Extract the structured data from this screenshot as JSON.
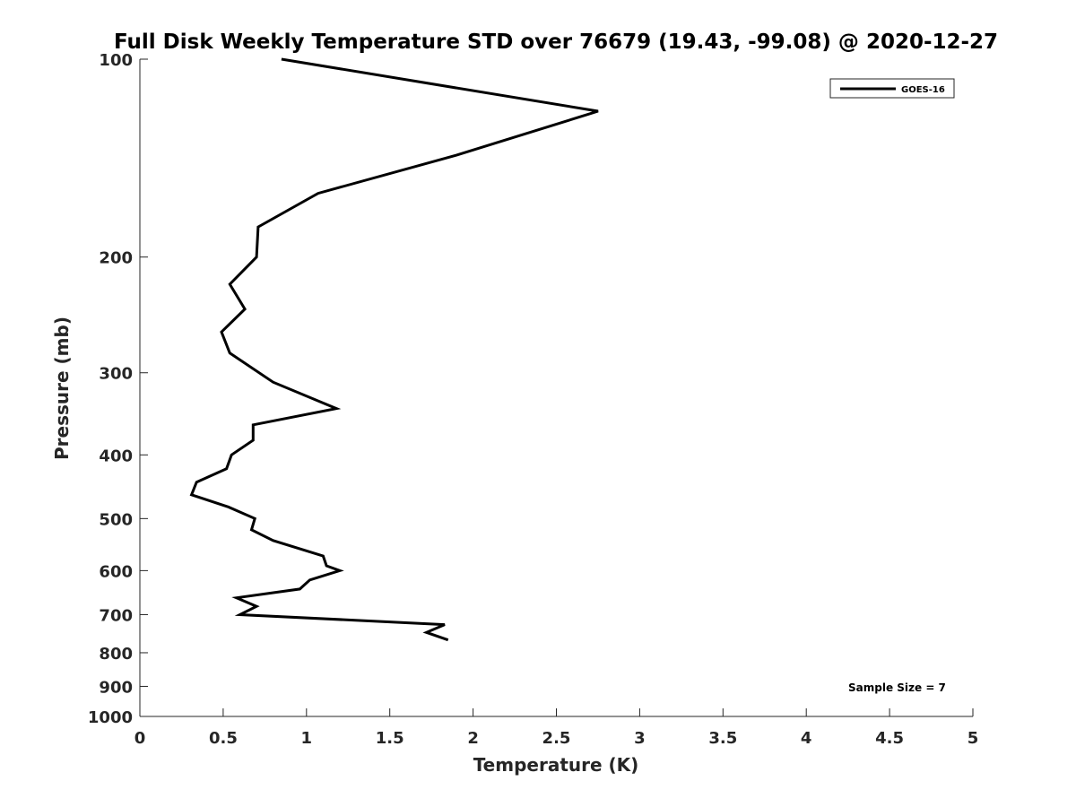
{
  "chart_data": {
    "type": "line",
    "title": "Full Disk Weekly Temperature STD over 76679 (19.43, -99.08) @ 2020-12-27",
    "xlabel": "Temperature (K)",
    "ylabel": "Pressure (mb)",
    "xlim": [
      0,
      5
    ],
    "ylim": [
      100,
      1000
    ],
    "y_scale": "log",
    "y_reversed": true,
    "xticks": [
      0,
      0.5,
      1,
      1.5,
      2,
      2.5,
      3,
      3.5,
      4,
      4.5,
      5
    ],
    "xtick_labels": [
      "0",
      "0.5",
      "1",
      "1.5",
      "2",
      "2.5",
      "3",
      "3.5",
      "4",
      "4.5",
      "5"
    ],
    "yticks": [
      100,
      200,
      300,
      400,
      500,
      600,
      700,
      800,
      900,
      1000
    ],
    "ytick_labels": [
      "100",
      "200",
      "300",
      "400",
      "500",
      "600",
      "700",
      "800",
      "900",
      "1000"
    ],
    "grid": false,
    "legend_position": "top-right",
    "annotation": "Sample Size = 7",
    "series": [
      {
        "name": "GOES-16",
        "color": "#000000",
        "points": [
          {
            "x": 0.85,
            "y": 100
          },
          {
            "x": 2.75,
            "y": 120
          },
          {
            "x": 1.9,
            "y": 140
          },
          {
            "x": 1.07,
            "y": 160
          },
          {
            "x": 0.71,
            "y": 180
          },
          {
            "x": 0.7,
            "y": 200
          },
          {
            "x": 0.54,
            "y": 220
          },
          {
            "x": 0.63,
            "y": 240
          },
          {
            "x": 0.49,
            "y": 260
          },
          {
            "x": 0.54,
            "y": 280
          },
          {
            "x": 0.8,
            "y": 310
          },
          {
            "x": 1.18,
            "y": 340
          },
          {
            "x": 0.68,
            "y": 360
          },
          {
            "x": 0.68,
            "y": 380
          },
          {
            "x": 0.55,
            "y": 400
          },
          {
            "x": 0.52,
            "y": 420
          },
          {
            "x": 0.34,
            "y": 440
          },
          {
            "x": 0.31,
            "y": 460
          },
          {
            "x": 0.53,
            "y": 480
          },
          {
            "x": 0.69,
            "y": 500
          },
          {
            "x": 0.67,
            "y": 520
          },
          {
            "x": 0.8,
            "y": 540
          },
          {
            "x": 1.1,
            "y": 570
          },
          {
            "x": 1.12,
            "y": 590
          },
          {
            "x": 1.2,
            "y": 600
          },
          {
            "x": 1.02,
            "y": 620
          },
          {
            "x": 0.96,
            "y": 640
          },
          {
            "x": 0.58,
            "y": 660
          },
          {
            "x": 0.7,
            "y": 680
          },
          {
            "x": 0.6,
            "y": 700
          },
          {
            "x": 1.83,
            "y": 725
          },
          {
            "x": 1.72,
            "y": 745
          },
          {
            "x": 1.85,
            "y": 765
          }
        ]
      }
    ]
  }
}
